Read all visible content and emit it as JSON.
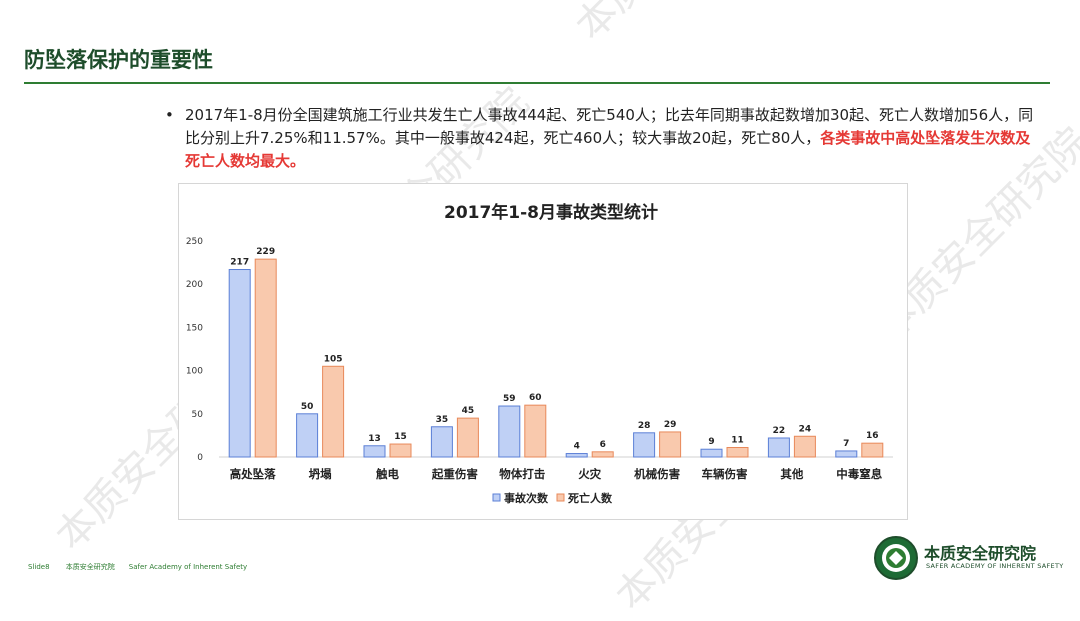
{
  "page": {
    "title": "防坠落保护的重要性",
    "bullet": "•",
    "paragraph_plain": "2017年1-8月份全国建筑施工行业共发生亡人事故444起、死亡540人；比去年同期事故起数增加30起、死亡人数增加56人，同比分别上升7.25%和11.57%。其中一般事故424起，死亡460人；较大事故20起，死亡80人，",
    "paragraph_highlight": "各类事故中高处坠落发生次数及死亡人数均最大。",
    "watermark_text": "本质安全研究院",
    "footer": {
      "slide": "Slide8",
      "org_cn": "本质安全研究院",
      "org_en": "Safer Academy of Inherent Safety"
    },
    "logo": {
      "name_cn": "本质安全研究院",
      "name_en": "SAFER ACADEMY OF INHERENT SAFETY"
    },
    "colors": {
      "accent": "#2e7d32",
      "highlight": "#e53935",
      "series1": "#bfd0f5",
      "series1_stroke": "#5b7fd6",
      "series2": "#f9c9ad",
      "series2_stroke": "#e8895a"
    }
  },
  "chart_data": {
    "type": "bar",
    "title": "2017年1-8月事故类型统计",
    "categories": [
      "高处坠落",
      "坍塌",
      "触电",
      "起重伤害",
      "物体打击",
      "火灾",
      "机械伤害",
      "车辆伤害",
      "其他",
      "中毒窒息"
    ],
    "series": [
      {
        "name": "事故次数",
        "values": [
          217,
          50,
          13,
          35,
          59,
          4,
          28,
          9,
          22,
          7
        ]
      },
      {
        "name": "死亡人数",
        "values": [
          229,
          105,
          15,
          45,
          60,
          6,
          29,
          11,
          24,
          16
        ]
      }
    ],
    "ylim": [
      0,
      250
    ],
    "yticks": [
      0,
      50,
      100,
      150,
      200,
      250
    ],
    "xlabel": "",
    "ylabel": "",
    "legend_position": "bottom",
    "grid": false
  }
}
